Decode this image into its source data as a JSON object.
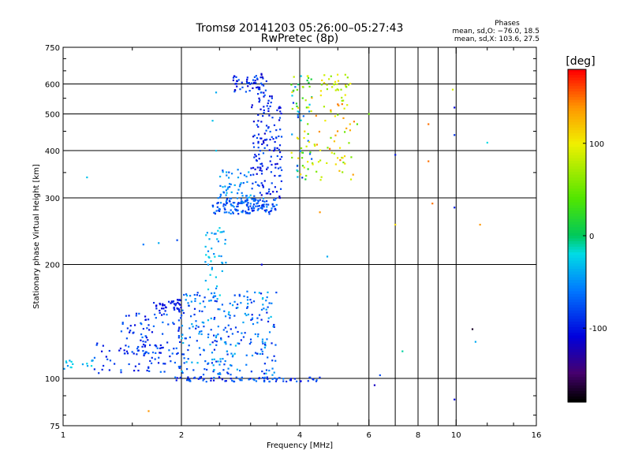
{
  "chart_data": {
    "type": "scatter",
    "title": "Tromsø 20141203 05:26:00–05:27:43",
    "subtitle": "RwPretec (8p)",
    "xlabel": "Frequency [MHz]",
    "ylabel": "Stationary phase Virtual Height [km]",
    "x_scale": "log",
    "y_scale": "log",
    "xlim": [
      1,
      16
    ],
    "ylim": [
      75,
      750
    ],
    "xticks": [
      1,
      2,
      4,
      6,
      8,
      10,
      16
    ],
    "yticks": [
      75,
      100,
      200,
      300,
      400,
      500,
      600,
      750
    ],
    "x_minor_ticks": [
      7,
      9
    ],
    "grid": true,
    "phases_box": {
      "title": "Phases",
      "line_o": "mean, sd,O: −76.0, 18.5",
      "line_x": "mean, sd,X: 103.6, 27.5"
    },
    "colorbar": {
      "label": "[deg]",
      "range": [
        -180,
        180
      ],
      "ticks": [
        100,
        0,
        -100
      ],
      "colormap": "rainbow"
    },
    "clusters": [
      {
        "f_range": [
          1.0,
          1.2
        ],
        "h_range": [
          106,
          112
        ],
        "n": 16,
        "phase": [
          -50,
          -20
        ]
      },
      {
        "f_range": [
          1.2,
          2.1
        ],
        "h_range": [
          103,
          125
        ],
        "n": 70,
        "phase": [
          -110,
          -60
        ]
      },
      {
        "f_range": [
          1.4,
          2.0
        ],
        "h_range": [
          115,
          150
        ],
        "n": 80,
        "phase": [
          -110,
          -60
        ]
      },
      {
        "f_range": [
          1.7,
          2.0
        ],
        "h_range": [
          150,
          162
        ],
        "n": 40,
        "phase": [
          -115,
          -90
        ]
      },
      {
        "f_range": [
          2.0,
          3.5
        ],
        "h_range": [
          102,
          170
        ],
        "n": 260,
        "phase": [
          -100,
          -30
        ]
      },
      {
        "f_range": [
          2.3,
          2.6
        ],
        "h_range": [
          160,
          250
        ],
        "n": 45,
        "phase": [
          -60,
          -20
        ]
      },
      {
        "f_range": [
          2.4,
          3.5
        ],
        "h_range": [
          272,
          300
        ],
        "n": 150,
        "phase": [
          -100,
          -50
        ]
      },
      {
        "f_range": [
          2.5,
          3.0
        ],
        "h_range": [
          300,
          360
        ],
        "n": 45,
        "phase": [
          -80,
          -30
        ]
      },
      {
        "f_range": [
          3.0,
          3.6
        ],
        "h_range": [
          300,
          560
        ],
        "n": 150,
        "phase": [
          -120,
          -70
        ]
      },
      {
        "f_range": [
          2.7,
          3.3
        ],
        "h_range": [
          560,
          640
        ],
        "n": 60,
        "phase": [
          -120,
          -70
        ]
      },
      {
        "f_range": [
          1.9,
          4.5
        ],
        "h_range": [
          98,
          101
        ],
        "n": 80,
        "phase": [
          -110,
          -60
        ]
      },
      {
        "f_range": [
          3.8,
          4.3
        ],
        "h_range": [
          330,
          640
        ],
        "n": 70,
        "phase": [
          -100,
          120
        ]
      },
      {
        "f_range": [
          4.2,
          5.5
        ],
        "h_range": [
          330,
          560
        ],
        "n": 60,
        "phase": [
          50,
          150
        ]
      },
      {
        "f_range": [
          4.5,
          5.4
        ],
        "h_range": [
          560,
          640
        ],
        "n": 30,
        "phase": [
          60,
          110
        ]
      }
    ],
    "sparse_points": [
      {
        "f": 1.15,
        "h": 340,
        "p": -30
      },
      {
        "f": 1.6,
        "h": 226,
        "p": -60
      },
      {
        "f": 1.75,
        "h": 228,
        "p": -40
      },
      {
        "f": 1.95,
        "h": 232,
        "p": -80
      },
      {
        "f": 1.65,
        "h": 82,
        "p": 140
      },
      {
        "f": 2.45,
        "h": 570,
        "p": -40
      },
      {
        "f": 2.4,
        "h": 480,
        "p": -30
      },
      {
        "f": 2.45,
        "h": 400,
        "p": -30
      },
      {
        "f": 3.2,
        "h": 200,
        "p": -110
      },
      {
        "f": 4.5,
        "h": 275,
        "p": 140
      },
      {
        "f": 4.7,
        "h": 210,
        "p": -40
      },
      {
        "f": 6.2,
        "h": 96,
        "p": -120
      },
      {
        "f": 6.4,
        "h": 102,
        "p": -80
      },
      {
        "f": 7.0,
        "h": 390,
        "p": -100
      },
      {
        "f": 7.0,
        "h": 255,
        "p": 110
      },
      {
        "f": 7.3,
        "h": 118,
        "p": -10
      },
      {
        "f": 8.5,
        "h": 470,
        "p": 150
      },
      {
        "f": 8.5,
        "h": 375,
        "p": 150
      },
      {
        "f": 8.7,
        "h": 290,
        "p": 150
      },
      {
        "f": 9.8,
        "h": 580,
        "p": 90
      },
      {
        "f": 9.9,
        "h": 520,
        "p": -110
      },
      {
        "f": 9.9,
        "h": 440,
        "p": -90
      },
      {
        "f": 9.9,
        "h": 283,
        "p": -100
      },
      {
        "f": 9.9,
        "h": 88,
        "p": -110
      },
      {
        "f": 11.0,
        "h": 135,
        "p": -170
      },
      {
        "f": 11.2,
        "h": 125,
        "p": -40
      },
      {
        "f": 11.5,
        "h": 255,
        "p": 140
      },
      {
        "f": 12.0,
        "h": 420,
        "p": -20
      },
      {
        "f": 6.0,
        "h": 500,
        "p": 50
      },
      {
        "f": 5.6,
        "h": 470,
        "p": 40
      }
    ]
  }
}
